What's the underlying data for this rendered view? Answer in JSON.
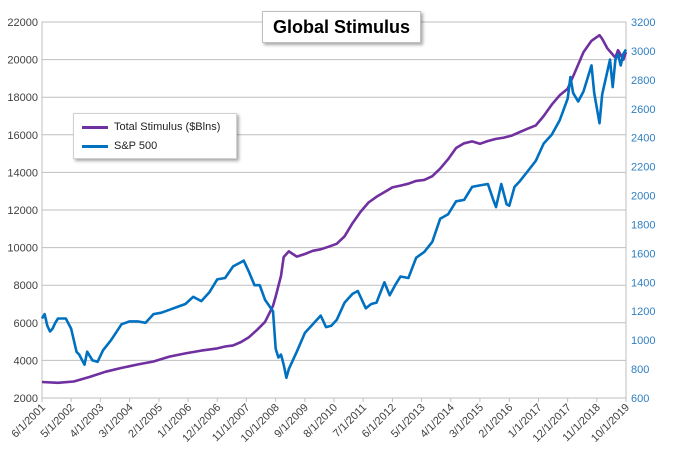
{
  "chart_data": {
    "type": "line",
    "title": "Global Stimulus",
    "xlabel": "",
    "ylabel": "",
    "y_left": {
      "min": 2000,
      "max": 22000,
      "step": 2000,
      "ticks": [
        "2000",
        "4000",
        "6000",
        "8000",
        "10000",
        "12000",
        "14000",
        "16000",
        "18000",
        "20000",
        "22000"
      ]
    },
    "y_right": {
      "min": 600,
      "max": 3200,
      "step": 200,
      "ticks": [
        "600",
        "800",
        "1000",
        "1200",
        "1400",
        "1600",
        "1800",
        "2000",
        "2200",
        "2400",
        "2600",
        "2800",
        "3000",
        "3200"
      ]
    },
    "x_range": [
      "2001-06-01",
      "2019-10-01"
    ],
    "x_ticks": [
      "6/1/2001",
      "5/1/2002",
      "4/1/2003",
      "3/1/2004",
      "2/1/2005",
      "1/1/2006",
      "12/1/2006",
      "11/1/2007",
      "10/1/2008",
      "9/1/2009",
      "8/1/2010",
      "7/1/2011",
      "6/1/2012",
      "5/1/2013",
      "4/1/2014",
      "3/1/2015",
      "2/1/2016",
      "1/1/2017",
      "12/1/2017",
      "11/1/2018",
      "10/1/2019"
    ],
    "grid": "horizontal",
    "legend_position": "upper-left",
    "series": [
      {
        "name": "Total Stimulus ($Blns)",
        "axis": "left",
        "color": "#7030a0",
        "points": [
          [
            "2001-06-01",
            2850
          ],
          [
            "2001-12-01",
            2810
          ],
          [
            "2002-06-01",
            2880
          ],
          [
            "2002-12-01",
            3120
          ],
          [
            "2003-06-01",
            3400
          ],
          [
            "2003-12-01",
            3600
          ],
          [
            "2004-06-01",
            3780
          ],
          [
            "2004-12-01",
            3940
          ],
          [
            "2005-06-01",
            4200
          ],
          [
            "2005-12-01",
            4370
          ],
          [
            "2006-06-01",
            4520
          ],
          [
            "2006-12-01",
            4640
          ],
          [
            "2007-03-01",
            4740
          ],
          [
            "2007-06-01",
            4800
          ],
          [
            "2007-09-01",
            4980
          ],
          [
            "2007-12-01",
            5240
          ],
          [
            "2008-03-01",
            5620
          ],
          [
            "2008-06-01",
            6050
          ],
          [
            "2008-09-01",
            6900
          ],
          [
            "2008-10-01",
            7400
          ],
          [
            "2008-12-01",
            8500
          ],
          [
            "2009-01-01",
            9500
          ],
          [
            "2009-03-01",
            9800
          ],
          [
            "2009-06-01",
            9520
          ],
          [
            "2009-09-01",
            9660
          ],
          [
            "2009-12-01",
            9830
          ],
          [
            "2010-03-01",
            9910
          ],
          [
            "2010-06-01",
            10050
          ],
          [
            "2010-09-01",
            10200
          ],
          [
            "2010-12-01",
            10600
          ],
          [
            "2011-03-01",
            11300
          ],
          [
            "2011-06-01",
            11900
          ],
          [
            "2011-09-01",
            12400
          ],
          [
            "2011-12-01",
            12700
          ],
          [
            "2012-03-01",
            12950
          ],
          [
            "2012-06-01",
            13200
          ],
          [
            "2012-09-01",
            13300
          ],
          [
            "2012-12-01",
            13400
          ],
          [
            "2013-03-01",
            13550
          ],
          [
            "2013-06-01",
            13600
          ],
          [
            "2013-09-01",
            13800
          ],
          [
            "2013-12-01",
            14200
          ],
          [
            "2014-03-01",
            14700
          ],
          [
            "2014-06-01",
            15300
          ],
          [
            "2014-09-01",
            15550
          ],
          [
            "2014-12-01",
            15650
          ],
          [
            "2015-03-01",
            15520
          ],
          [
            "2015-06-01",
            15670
          ],
          [
            "2015-09-01",
            15780
          ],
          [
            "2015-12-01",
            15850
          ],
          [
            "2016-03-01",
            15960
          ],
          [
            "2016-06-01",
            16150
          ],
          [
            "2016-09-01",
            16330
          ],
          [
            "2016-12-01",
            16500
          ],
          [
            "2017-03-01",
            17000
          ],
          [
            "2017-06-01",
            17600
          ],
          [
            "2017-09-01",
            18100
          ],
          [
            "2017-12-01",
            18450
          ],
          [
            "2018-03-01",
            19400
          ],
          [
            "2018-06-01",
            20400
          ],
          [
            "2018-09-01",
            21000
          ],
          [
            "2018-12-01",
            21300
          ],
          [
            "2019-01-01",
            21100
          ],
          [
            "2019-03-01",
            20600
          ],
          [
            "2019-06-01",
            20100
          ],
          [
            "2019-07-01",
            20500
          ],
          [
            "2019-09-01",
            20000
          ],
          [
            "2019-10-01",
            20400
          ]
        ]
      },
      {
        "name": "S&P 500",
        "axis": "right",
        "color": "#0070c0",
        "points": [
          [
            "2001-06-01",
            1150
          ],
          [
            "2001-07-01",
            1180
          ],
          [
            "2001-08-01",
            1100
          ],
          [
            "2001-09-01",
            1060
          ],
          [
            "2001-10-01",
            1080
          ],
          [
            "2001-11-01",
            1120
          ],
          [
            "2001-12-01",
            1150
          ],
          [
            "2002-03-01",
            1150
          ],
          [
            "2002-05-01",
            1080
          ],
          [
            "2002-07-01",
            920
          ],
          [
            "2002-08-01",
            900
          ],
          [
            "2002-10-01",
            830
          ],
          [
            "2002-11-01",
            920
          ],
          [
            "2003-01-01",
            860
          ],
          [
            "2003-03-01",
            850
          ],
          [
            "2003-05-01",
            930
          ],
          [
            "2003-08-01",
            1000
          ],
          [
            "2003-12-01",
            1110
          ],
          [
            "2004-03-01",
            1130
          ],
          [
            "2004-06-01",
            1130
          ],
          [
            "2004-09-01",
            1120
          ],
          [
            "2004-12-01",
            1180
          ],
          [
            "2005-03-01",
            1190
          ],
          [
            "2005-06-01",
            1210
          ],
          [
            "2005-09-01",
            1230
          ],
          [
            "2005-12-01",
            1250
          ],
          [
            "2006-03-01",
            1300
          ],
          [
            "2006-06-01",
            1270
          ],
          [
            "2006-09-01",
            1330
          ],
          [
            "2006-12-01",
            1420
          ],
          [
            "2007-03-01",
            1430
          ],
          [
            "2007-06-01",
            1510
          ],
          [
            "2007-09-01",
            1540
          ],
          [
            "2007-10-01",
            1550
          ],
          [
            "2007-12-01",
            1470
          ],
          [
            "2008-02-01",
            1380
          ],
          [
            "2008-04-01",
            1380
          ],
          [
            "2008-06-01",
            1280
          ],
          [
            "2008-09-01",
            1200
          ],
          [
            "2008-10-01",
            940
          ],
          [
            "2008-11-01",
            880
          ],
          [
            "2008-12-01",
            900
          ],
          [
            "2009-01-01",
            830
          ],
          [
            "2009-02-01",
            740
          ],
          [
            "2009-03-01",
            800
          ],
          [
            "2009-06-01",
            920
          ],
          [
            "2009-09-01",
            1050
          ],
          [
            "2009-12-01",
            1110
          ],
          [
            "2010-03-01",
            1170
          ],
          [
            "2010-05-01",
            1090
          ],
          [
            "2010-07-01",
            1100
          ],
          [
            "2010-09-01",
            1140
          ],
          [
            "2010-12-01",
            1260
          ],
          [
            "2011-03-01",
            1320
          ],
          [
            "2011-05-01",
            1340
          ],
          [
            "2011-08-01",
            1220
          ],
          [
            "2011-10-01",
            1250
          ],
          [
            "2011-12-01",
            1260
          ],
          [
            "2012-03-01",
            1400
          ],
          [
            "2012-05-01",
            1310
          ],
          [
            "2012-07-01",
            1380
          ],
          [
            "2012-09-01",
            1440
          ],
          [
            "2012-12-01",
            1430
          ],
          [
            "2013-03-01",
            1570
          ],
          [
            "2013-06-01",
            1610
          ],
          [
            "2013-09-01",
            1680
          ],
          [
            "2013-12-01",
            1840
          ],
          [
            "2014-03-01",
            1870
          ],
          [
            "2014-06-01",
            1960
          ],
          [
            "2014-09-01",
            1970
          ],
          [
            "2014-12-01",
            2060
          ],
          [
            "2015-03-01",
            2070
          ],
          [
            "2015-06-01",
            2080
          ],
          [
            "2015-08-01",
            1970
          ],
          [
            "2015-09-01",
            1920
          ],
          [
            "2015-11-01",
            2080
          ],
          [
            "2016-01-01",
            1940
          ],
          [
            "2016-02-01",
            1930
          ],
          [
            "2016-04-01",
            2060
          ],
          [
            "2016-06-01",
            2100
          ],
          [
            "2016-09-01",
            2170
          ],
          [
            "2016-12-01",
            2240
          ],
          [
            "2017-03-01",
            2360
          ],
          [
            "2017-06-01",
            2420
          ],
          [
            "2017-09-01",
            2520
          ],
          [
            "2017-12-01",
            2670
          ],
          [
            "2018-01-01",
            2820
          ],
          [
            "2018-02-01",
            2710
          ],
          [
            "2018-04-01",
            2650
          ],
          [
            "2018-06-01",
            2720
          ],
          [
            "2018-09-01",
            2900
          ],
          [
            "2018-10-01",
            2710
          ],
          [
            "2018-12-01",
            2500
          ],
          [
            "2019-01-01",
            2700
          ],
          [
            "2019-04-01",
            2940
          ],
          [
            "2019-05-01",
            2750
          ],
          [
            "2019-06-01",
            2940
          ],
          [
            "2019-07-01",
            2980
          ],
          [
            "2019-08-01",
            2900
          ],
          [
            "2019-09-01",
            2980
          ],
          [
            "2019-10-01",
            3010
          ]
        ]
      }
    ]
  }
}
